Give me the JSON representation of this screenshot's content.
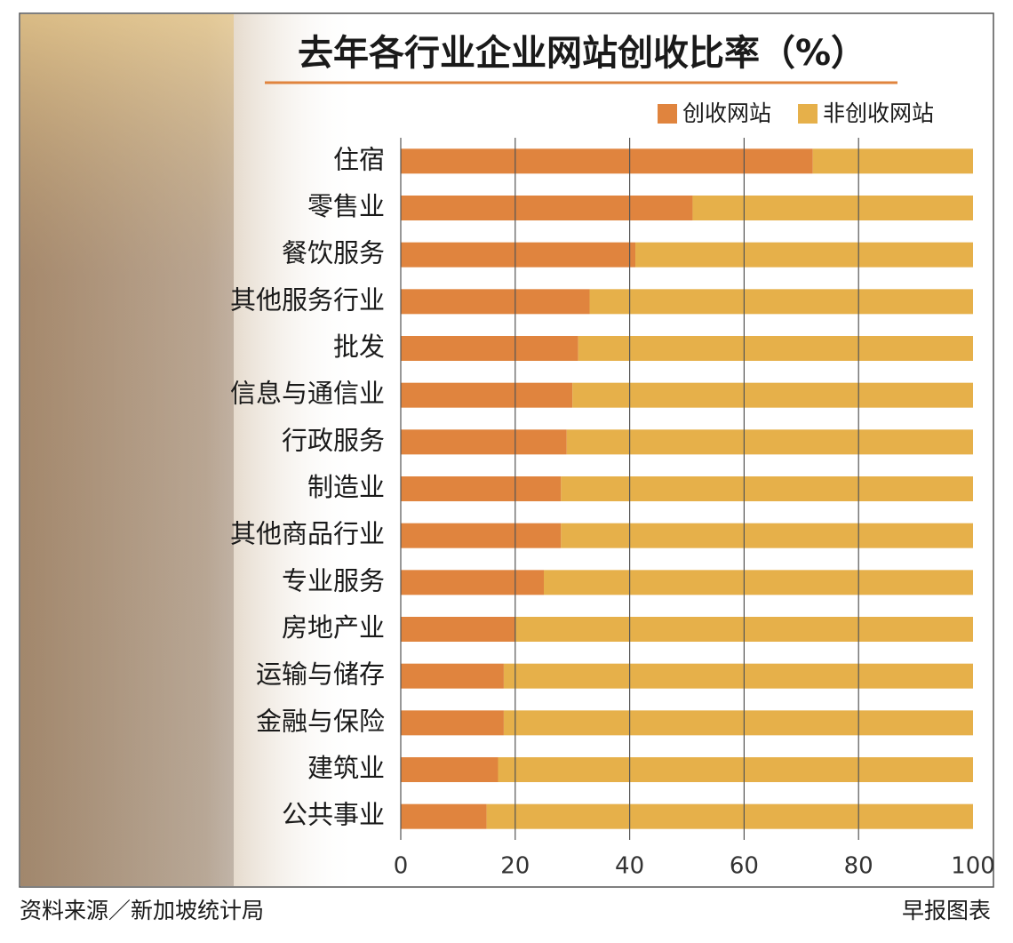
{
  "chart_data": {
    "type": "bar",
    "orientation": "horizontal",
    "stacked": true,
    "title": "去年各行业企业网站创收比率（%）",
    "source": "资料来源／新加坡统计局",
    "credit": "早报图表",
    "categories": [
      "住宿",
      "零售业",
      "餐饮服务",
      "其他服务行业",
      "批发",
      "信息与通信业",
      "行政服务",
      "制造业",
      "其他商品行业",
      "专业服务",
      "房地产业",
      "运输与储存",
      "金融与保险",
      "建筑业",
      "公共事业"
    ],
    "series": [
      {
        "name": "创收网站",
        "color": "#e0843e",
        "values": [
          72,
          51,
          41,
          33,
          31,
          30,
          29,
          28,
          28,
          25,
          20,
          18,
          18,
          17,
          15
        ]
      },
      {
        "name": "非创收网站",
        "color": "#e6b04a",
        "values": [
          28,
          49,
          59,
          67,
          69,
          70,
          71,
          72,
          72,
          75,
          80,
          82,
          82,
          83,
          85
        ]
      }
    ],
    "xlim": [
      0,
      100
    ],
    "xticks": [
      0,
      20,
      40,
      60,
      80,
      100
    ],
    "grid": true
  }
}
